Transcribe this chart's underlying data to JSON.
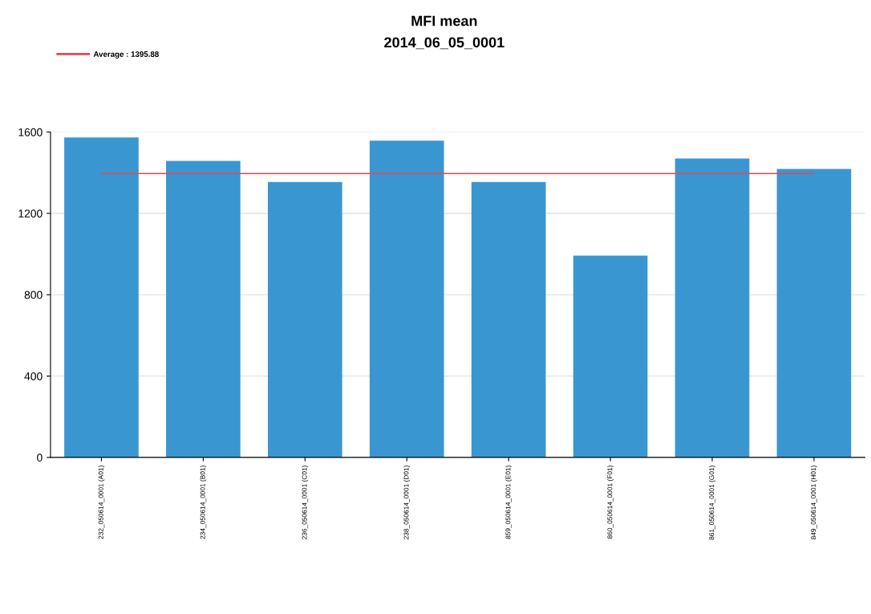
{
  "chart_data": {
    "type": "bar",
    "title": "MFI mean",
    "subtitle": "2014_06_05_0001",
    "categories": [
      "232_050614_0001 (A01)",
      "234_050614_0001 (B01)",
      "236_050614_0001 (C01)",
      "238_050614_0001 (D01)",
      "859_050614_0001 (E01)",
      "860_050614_0001 (F01)",
      "861_050614_0001 (G01)",
      "849_050614_0001 (H01)"
    ],
    "values": [
      1573,
      1458,
      1354,
      1557,
      1354,
      992,
      1470,
      1418
    ],
    "color": "#3a96d0",
    "ylim": [
      0,
      1600
    ],
    "yticks": [
      0,
      400,
      800,
      1200,
      1600
    ],
    "grid": "y",
    "ref_lines": [
      {
        "axis": "y",
        "value": 1395.88,
        "label": "Average : 1395.88",
        "color": "#e8474c",
        "line_style": "solid"
      }
    ],
    "legend": "top left"
  }
}
